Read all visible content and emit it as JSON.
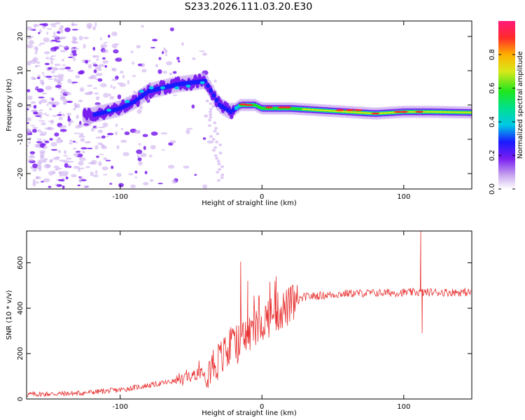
{
  "figure_title": "S233.2026.111.03.20.E30",
  "chart_data": [
    {
      "type": "heatmap",
      "title": "S233.2026.111.03.20.E30",
      "xlabel": "Height of straight line (km)",
      "ylabel": "Frequency (Hz)",
      "xlim": [
        -166,
        148
      ],
      "ylim": [
        -24.5,
        24.5
      ],
      "xticks": [
        -100,
        0,
        100
      ],
      "xtick_labels": [
        "-100",
        "0",
        "100"
      ],
      "yticks": [
        -20,
        -10,
        0,
        10,
        20
      ],
      "ytick_labels": [
        "-20",
        "-10",
        "0",
        "10",
        "20"
      ],
      "colorbar": {
        "label": "Normalized spectral amplitude",
        "range": [
          0,
          1
        ],
        "ticks": [
          0.0,
          0.2,
          0.4,
          0.6,
          0.8
        ],
        "tick_labels": [
          "0.0",
          "0.2",
          "0.4",
          "0.6",
          "0.8"
        ]
      },
      "ridge": {
        "x": [
          -120,
          -110,
          -100,
          -90,
          -80,
          -70,
          -60,
          -50,
          -40,
          -30,
          -22,
          -15,
          -5,
          0,
          20,
          40,
          60,
          80,
          100,
          120,
          148
        ],
        "freq": [
          -3,
          -2,
          -1,
          1,
          4,
          5,
          6,
          6.5,
          7,
          0,
          -2,
          0,
          0,
          -1,
          -1,
          -1.5,
          -2,
          -2.5,
          -2,
          -2,
          -2.2
        ]
      }
    },
    {
      "type": "line",
      "xlabel": "Height of straight line (km)",
      "ylabel": "SNR (10 * v/v)",
      "xlim": [
        -166,
        148
      ],
      "ylim": [
        0,
        740
      ],
      "xticks": [
        -100,
        0,
        100
      ],
      "xtick_labels": [
        "-100",
        "0",
        "100"
      ],
      "yticks": [
        0,
        200,
        400,
        600
      ],
      "ytick_labels": [
        "0",
        "200",
        "400",
        "600"
      ],
      "color": "#e83030",
      "trend": {
        "x": [
          -166,
          -130,
          -100,
          -80,
          -60,
          -40,
          -30,
          -20,
          -10,
          0,
          10,
          20,
          30,
          60,
          90,
          110,
          148
        ],
        "y": [
          20,
          25,
          40,
          60,
          80,
          130,
          170,
          230,
          280,
          340,
          380,
          410,
          450,
          465,
          468,
          470,
          470
        ]
      },
      "spikes": [
        {
          "x": -15,
          "y": 605
        },
        {
          "x": -10,
          "y": 520
        },
        {
          "x": 10,
          "y": 540
        },
        {
          "x": 112,
          "y": 740
        },
        {
          "x": 113,
          "y": 290
        }
      ]
    }
  ]
}
